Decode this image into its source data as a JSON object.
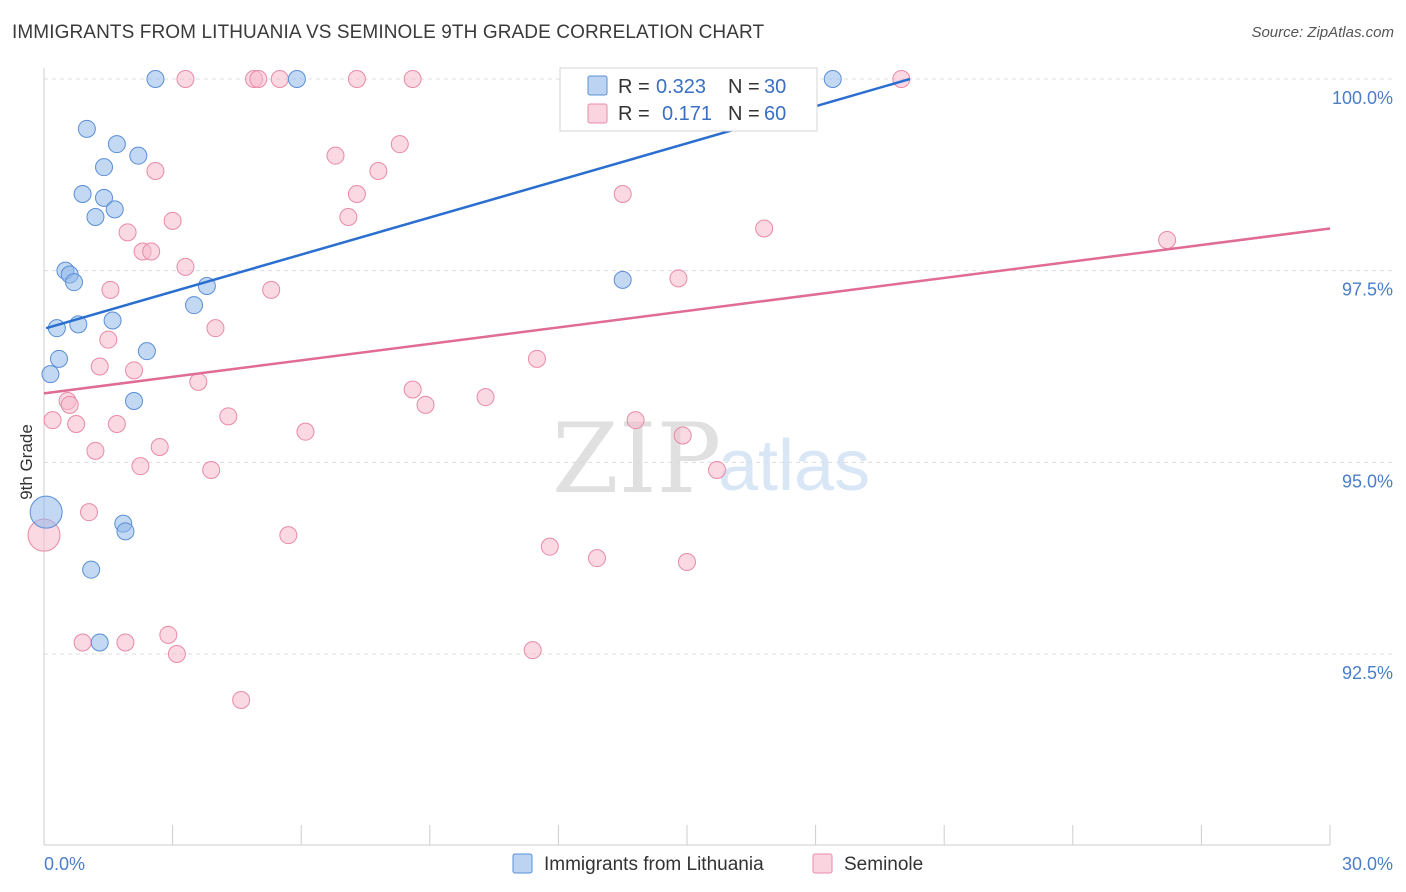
{
  "chart_data": {
    "type": "scatter",
    "title": "IMMIGRANTS FROM LITHUANIA VS SEMINOLE 9TH GRADE CORRELATION CHART",
    "source": "Source: ZipAtlas.com",
    "xlabel": "",
    "ylabel": "9th Grade",
    "xlim": [
      0,
      30
    ],
    "ylim": [
      90.0,
      100.3
    ],
    "x_tick_labels": [
      "0.0%",
      "30.0%"
    ],
    "y_ticks": [
      {
        "value": 92.5,
        "label": "92.5%"
      },
      {
        "value": 95.0,
        "label": "95.0%"
      },
      {
        "value": 97.5,
        "label": "97.5%"
      },
      {
        "value": 100.0,
        "label": "100.0%"
      }
    ],
    "watermark": {
      "zip": "ZIP",
      "atlas": "atlas"
    },
    "series": [
      {
        "name": "Immigrants from Lithuania",
        "color": "#8fb8ea",
        "stroke": "#5a8fd6",
        "line_color": "#2a6fd0",
        "R": "0.323",
        "N": "30",
        "trend": {
          "x0": 0.05,
          "y0": 96.75,
          "x1": 20.2,
          "y1": 100.0
        },
        "points": [
          {
            "x": 2.6,
            "y": 100.0
          },
          {
            "x": 5.9,
            "y": 100.0
          },
          {
            "x": 18.4,
            "y": 100.0
          },
          {
            "x": 1.0,
            "y": 99.35
          },
          {
            "x": 1.7,
            "y": 99.15
          },
          {
            "x": 2.2,
            "y": 99.0
          },
          {
            "x": 1.4,
            "y": 98.85
          },
          {
            "x": 0.9,
            "y": 98.5
          },
          {
            "x": 1.4,
            "y": 98.45
          },
          {
            "x": 1.65,
            "y": 98.3
          },
          {
            "x": 1.2,
            "y": 98.2
          },
          {
            "x": 0.5,
            "y": 97.5
          },
          {
            "x": 0.6,
            "y": 97.45
          },
          {
            "x": 0.7,
            "y": 97.35
          },
          {
            "x": 3.8,
            "y": 97.3
          },
          {
            "x": 13.5,
            "y": 97.38
          },
          {
            "x": 3.5,
            "y": 97.05
          },
          {
            "x": 1.6,
            "y": 96.85
          },
          {
            "x": 0.8,
            "y": 96.8
          },
          {
            "x": 0.3,
            "y": 96.75
          },
          {
            "x": 2.4,
            "y": 96.45
          },
          {
            "x": 0.35,
            "y": 96.35
          },
          {
            "x": 0.15,
            "y": 96.15
          },
          {
            "x": 2.1,
            "y": 95.8
          },
          {
            "x": 0.05,
            "y": 94.35,
            "r": 16
          },
          {
            "x": 1.85,
            "y": 94.2
          },
          {
            "x": 1.9,
            "y": 94.1
          },
          {
            "x": 1.1,
            "y": 93.6
          },
          {
            "x": 1.3,
            "y": 92.65
          }
        ]
      },
      {
        "name": "Seminole",
        "color": "#f7b9cc",
        "stroke": "#e98aa8",
        "line_color": "#e06b95",
        "R": "0.171",
        "N": "60",
        "trend": {
          "x0": 0.0,
          "y0": 95.9,
          "x1": 30.0,
          "y1": 98.05
        },
        "points": [
          {
            "x": 3.3,
            "y": 100.0
          },
          {
            "x": 4.9,
            "y": 100.0
          },
          {
            "x": 5.0,
            "y": 100.0
          },
          {
            "x": 5.5,
            "y": 100.0
          },
          {
            "x": 7.3,
            "y": 100.0
          },
          {
            "x": 8.6,
            "y": 100.0
          },
          {
            "x": 20.0,
            "y": 100.0
          },
          {
            "x": 8.3,
            "y": 99.15
          },
          {
            "x": 6.8,
            "y": 99.0
          },
          {
            "x": 7.8,
            "y": 98.8
          },
          {
            "x": 2.6,
            "y": 98.8
          },
          {
            "x": 7.3,
            "y": 98.5
          },
          {
            "x": 13.5,
            "y": 98.5
          },
          {
            "x": 7.1,
            "y": 98.2
          },
          {
            "x": 3.0,
            "y": 98.15
          },
          {
            "x": 16.8,
            "y": 98.05
          },
          {
            "x": 1.95,
            "y": 98.0
          },
          {
            "x": 26.2,
            "y": 97.9
          },
          {
            "x": 2.3,
            "y": 97.75
          },
          {
            "x": 2.5,
            "y": 97.75
          },
          {
            "x": 3.3,
            "y": 97.55
          },
          {
            "x": 14.8,
            "y": 97.4
          },
          {
            "x": 1.55,
            "y": 97.25
          },
          {
            "x": 5.3,
            "y": 97.25
          },
          {
            "x": 4.0,
            "y": 96.75
          },
          {
            "x": 1.5,
            "y": 96.6
          },
          {
            "x": 11.5,
            "y": 96.35
          },
          {
            "x": 1.3,
            "y": 96.25
          },
          {
            "x": 2.1,
            "y": 96.2
          },
          {
            "x": 3.6,
            "y": 96.05
          },
          {
            "x": 8.6,
            "y": 95.95
          },
          {
            "x": 10.3,
            "y": 95.85
          },
          {
            "x": 0.55,
            "y": 95.8
          },
          {
            "x": 0.6,
            "y": 95.75
          },
          {
            "x": 8.9,
            "y": 95.75
          },
          {
            "x": 4.3,
            "y": 95.6
          },
          {
            "x": 0.2,
            "y": 95.55
          },
          {
            "x": 0.75,
            "y": 95.5
          },
          {
            "x": 1.7,
            "y": 95.5
          },
          {
            "x": 13.8,
            "y": 95.55
          },
          {
            "x": 6.1,
            "y": 95.4
          },
          {
            "x": 14.9,
            "y": 95.35
          },
          {
            "x": 2.7,
            "y": 95.2
          },
          {
            "x": 1.2,
            "y": 95.15
          },
          {
            "x": 2.25,
            "y": 94.95
          },
          {
            "x": 3.9,
            "y": 94.9
          },
          {
            "x": 15.7,
            "y": 94.9
          },
          {
            "x": 1.05,
            "y": 94.35
          },
          {
            "x": 0.0,
            "y": 94.05,
            "r": 16
          },
          {
            "x": 5.7,
            "y": 94.05
          },
          {
            "x": 11.8,
            "y": 93.9
          },
          {
            "x": 12.9,
            "y": 93.75
          },
          {
            "x": 15.0,
            "y": 93.7
          },
          {
            "x": 0.9,
            "y": 92.65
          },
          {
            "x": 1.9,
            "y": 92.65
          },
          {
            "x": 2.9,
            "y": 92.75
          },
          {
            "x": 3.1,
            "y": 92.5
          },
          {
            "x": 11.4,
            "y": 92.55
          },
          {
            "x": 4.6,
            "y": 91.9
          }
        ]
      }
    ]
  },
  "legend": {
    "r_label": "R =",
    "n_label": "N ="
  }
}
